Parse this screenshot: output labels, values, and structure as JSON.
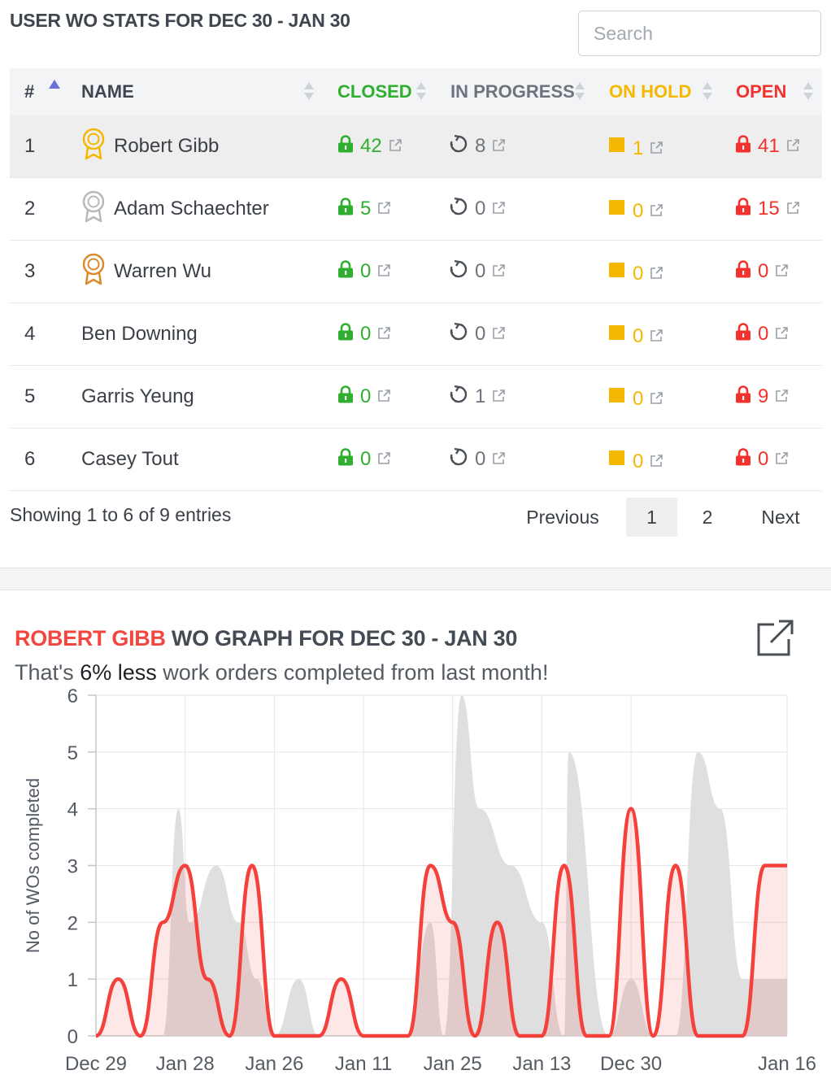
{
  "stats": {
    "title": "USER WO STATS FOR DEC 30 - JAN 30",
    "search_placeholder": "Search"
  },
  "columns": {
    "num": "#",
    "name": "NAME",
    "closed": "CLOSED",
    "in_progress": "IN PROGRESS",
    "on_hold": "ON HOLD",
    "open": "OPEN"
  },
  "colors": {
    "closed": "#2fae2f",
    "in_progress": "#6c757d",
    "on_hold": "#f5b800",
    "open": "#f2322d",
    "gold": "#f5b800",
    "silver": "#b8b8b8",
    "bronze": "#d98b2b",
    "line": "#f5413b",
    "prev_fill": "#dddddd"
  },
  "rows": [
    {
      "num": "1",
      "name": "Robert Gibb",
      "medal": "gold-medal-icon",
      "closed": "42",
      "in_progress": "8",
      "on_hold": "1",
      "open": "41"
    },
    {
      "num": "2",
      "name": "Adam Schaechter",
      "medal": "silver-medal-icon",
      "closed": "5",
      "in_progress": "0",
      "on_hold": "0",
      "open": "15"
    },
    {
      "num": "3",
      "name": "Warren Wu",
      "medal": "bronze-medal-icon",
      "closed": "0",
      "in_progress": "0",
      "on_hold": "0",
      "open": "0"
    },
    {
      "num": "4",
      "name": "Ben Downing",
      "medal": "",
      "closed": "0",
      "in_progress": "0",
      "on_hold": "0",
      "open": "0"
    },
    {
      "num": "5",
      "name": "Garris Yeung",
      "medal": "",
      "closed": "0",
      "in_progress": "1",
      "on_hold": "0",
      "open": "9"
    },
    {
      "num": "6",
      "name": "Casey Tout",
      "medal": "",
      "closed": "0",
      "in_progress": "0",
      "on_hold": "0",
      "open": "0"
    }
  ],
  "footer": {
    "info": "Showing 1 to 6 of 9 entries",
    "previous": "Previous",
    "page1": "1",
    "page2": "2",
    "next": "Next"
  },
  "graph": {
    "user": "ROBERT GIBB",
    "title_rest": "WO GRAPH FOR DEC 30 - JAN 30",
    "sub_pre": "That's",
    "sub_bold": "6% less",
    "sub_post": "work orders completed from last month!"
  },
  "chart_data": {
    "type": "area",
    "ylabel": "No of WOs completed",
    "ylim": [
      0,
      6
    ],
    "yticks": [
      0,
      1,
      2,
      3,
      4,
      5,
      6
    ],
    "x_tick_labels": [
      "Dec 29",
      "Jan 28",
      "Jan 26",
      "Jan 11",
      "Jan 25",
      "Jan 13",
      "Dec 30",
      "Jan 16"
    ],
    "x_tick_positions": [
      0,
      2,
      4,
      6,
      8,
      10,
      12,
      15.5
    ],
    "grid": true,
    "series": [
      {
        "style": "red line with light fill",
        "x": [
          0,
          0.5,
          1,
          1.5,
          2,
          2.5,
          3,
          3.5,
          4,
          4.5,
          5,
          5.5,
          6,
          6.5,
          7,
          7.5,
          8,
          8.5,
          9,
          9.5,
          10,
          10.5,
          11,
          11.5,
          12,
          12.5,
          13,
          13.5,
          14,
          14.5,
          15,
          15.5
        ],
        "values": [
          0,
          1,
          0,
          2,
          3,
          1,
          0,
          3,
          0,
          0,
          0,
          1,
          0,
          0,
          0,
          3,
          2,
          0,
          2,
          0,
          0,
          3,
          0,
          0,
          4,
          0,
          3,
          0,
          0,
          0,
          3,
          3
        ]
      },
      {
        "style": "grey area",
        "x": [
          0,
          0.5,
          1,
          1.5,
          1.85,
          2.1,
          2.7,
          3.2,
          3.6,
          4,
          4.55,
          5,
          5.5,
          6,
          6.5,
          7,
          7.5,
          7.8,
          8.2,
          8.6,
          9.3,
          10,
          10.5,
          10.6,
          11.5,
          12,
          12.5,
          13,
          13.5,
          14,
          14.5,
          15,
          15.5
        ],
        "values": [
          0,
          0,
          0,
          0,
          4,
          2,
          3,
          2,
          1,
          0,
          1,
          0,
          0,
          0,
          0,
          0,
          2,
          0,
          6,
          4,
          3,
          2,
          0,
          5,
          0,
          1,
          0,
          0,
          5,
          4,
          1,
          1,
          1
        ]
      }
    ]
  }
}
